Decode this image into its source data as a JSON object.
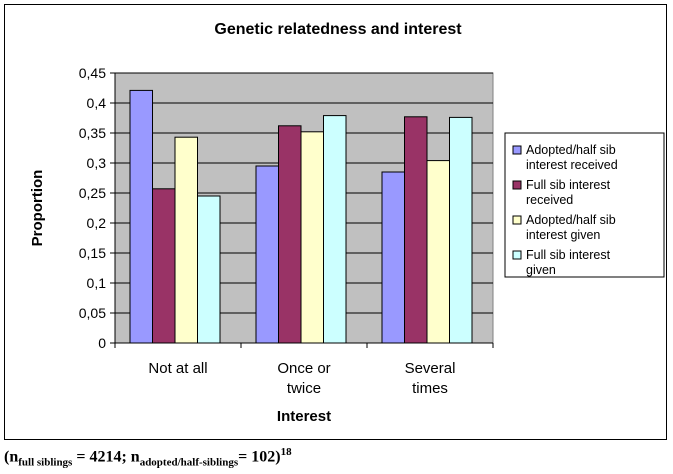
{
  "chart_data": {
    "type": "bar",
    "title": "Genetic relatedness and interest",
    "xlabel": "Interest",
    "ylabel": "Proportion",
    "categories": [
      [
        "Not at all"
      ],
      [
        "Once or",
        "twice"
      ],
      [
        "Several",
        "times"
      ]
    ],
    "ylim": [
      0,
      0.45
    ],
    "yticks": [
      0,
      0.05,
      0.1,
      0.15,
      0.2,
      0.25,
      0.3,
      0.35,
      0.4,
      0.45
    ],
    "ytick_labels": [
      "0",
      "0,05",
      "0,1",
      "0,15",
      "0,2",
      "0,25",
      "0,3",
      "0,35",
      "0,4",
      "0,45"
    ],
    "grid": true,
    "legend_position": "right",
    "plot_background": "#c0c0c0",
    "series": [
      {
        "name": [
          "Adopted/half sib",
          "interest received"
        ],
        "color": "#9999ff",
        "values": [
          0.421,
          0.295,
          0.285
        ]
      },
      {
        "name": [
          "Full sib interest",
          "received"
        ],
        "color": "#993366",
        "values": [
          0.257,
          0.362,
          0.377
        ]
      },
      {
        "name": [
          "Adopted/half sib",
          "interest given"
        ],
        "color": "#ffffcc",
        "values": [
          0.343,
          0.352,
          0.304
        ]
      },
      {
        "name": [
          "Full sib interest",
          "given"
        ],
        "color": "#ccffff",
        "values": [
          0.245,
          0.379,
          0.376
        ]
      }
    ]
  },
  "footnote": {
    "open": "(n",
    "sub1": "full siblings",
    "mid": " = 4214; n",
    "sub2": "adopted/half-siblings",
    "end": "= 102)",
    "sup": "18"
  }
}
